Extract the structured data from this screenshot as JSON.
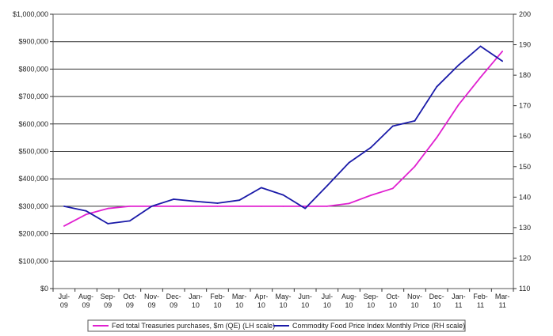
{
  "chart_data": {
    "type": "line",
    "title": "",
    "xlabel": "",
    "ylabel": "",
    "y2label": "",
    "grid": true,
    "legend_position": "bottom",
    "categories": [
      [
        "Jul-",
        "09"
      ],
      [
        "Aug-",
        "09"
      ],
      [
        "Sep-",
        "09"
      ],
      [
        "Oct-",
        "09"
      ],
      [
        "Nov-",
        "09"
      ],
      [
        "Dec-",
        "09"
      ],
      [
        "Jan-",
        "10"
      ],
      [
        "Feb-",
        "10"
      ],
      [
        "Mar-",
        "10"
      ],
      [
        "Apr-",
        "10"
      ],
      [
        "May-",
        "10"
      ],
      [
        "Jun-",
        "10"
      ],
      [
        "Jul-",
        "10"
      ],
      [
        "Aug-",
        "10"
      ],
      [
        "Sep-",
        "10"
      ],
      [
        "Oct-",
        "10"
      ],
      [
        "Nov-",
        "10"
      ],
      [
        "Dec-",
        "10"
      ],
      [
        "Jan-",
        "11"
      ],
      [
        "Feb-",
        "11"
      ],
      [
        "Mar-",
        "11"
      ]
    ],
    "ylim_left": [
      0,
      1000000
    ],
    "ylim_right": [
      110,
      200
    ],
    "left_ticks": [
      "$0",
      "$100,000",
      "$200,000",
      "$300,000",
      "$400,000",
      "$500,000",
      "$600,000",
      "$700,000",
      "$800,000",
      "$900,000",
      "$1,000,000"
    ],
    "right_ticks": [
      "110",
      "120",
      "130",
      "140",
      "150",
      "160",
      "170",
      "180",
      "190",
      "200"
    ],
    "series": [
      {
        "name": "Fed total Treasuries purchases, $m (QE) (LH scale)",
        "axis": "left",
        "color": "#e020d0",
        "values": [
          228000,
          270000,
          292000,
          300000,
          300000,
          300000,
          300000,
          300000,
          300000,
          300000,
          300000,
          300000,
          300000,
          310000,
          340000,
          365000,
          445000,
          550000,
          670000,
          770000,
          865000
        ]
      },
      {
        "name": "Commodity Food Price Index Monthly Price (RH scale)",
        "axis": "right",
        "color": "#1a1aa8",
        "values": [
          137.0,
          135.5,
          131.3,
          132.2,
          137.0,
          139.3,
          138.6,
          138.0,
          139.0,
          143.1,
          140.7,
          136.3,
          143.7,
          151.3,
          156.3,
          163.3,
          165.0,
          176.2,
          183.3,
          189.5,
          184.6
        ]
      }
    ]
  }
}
